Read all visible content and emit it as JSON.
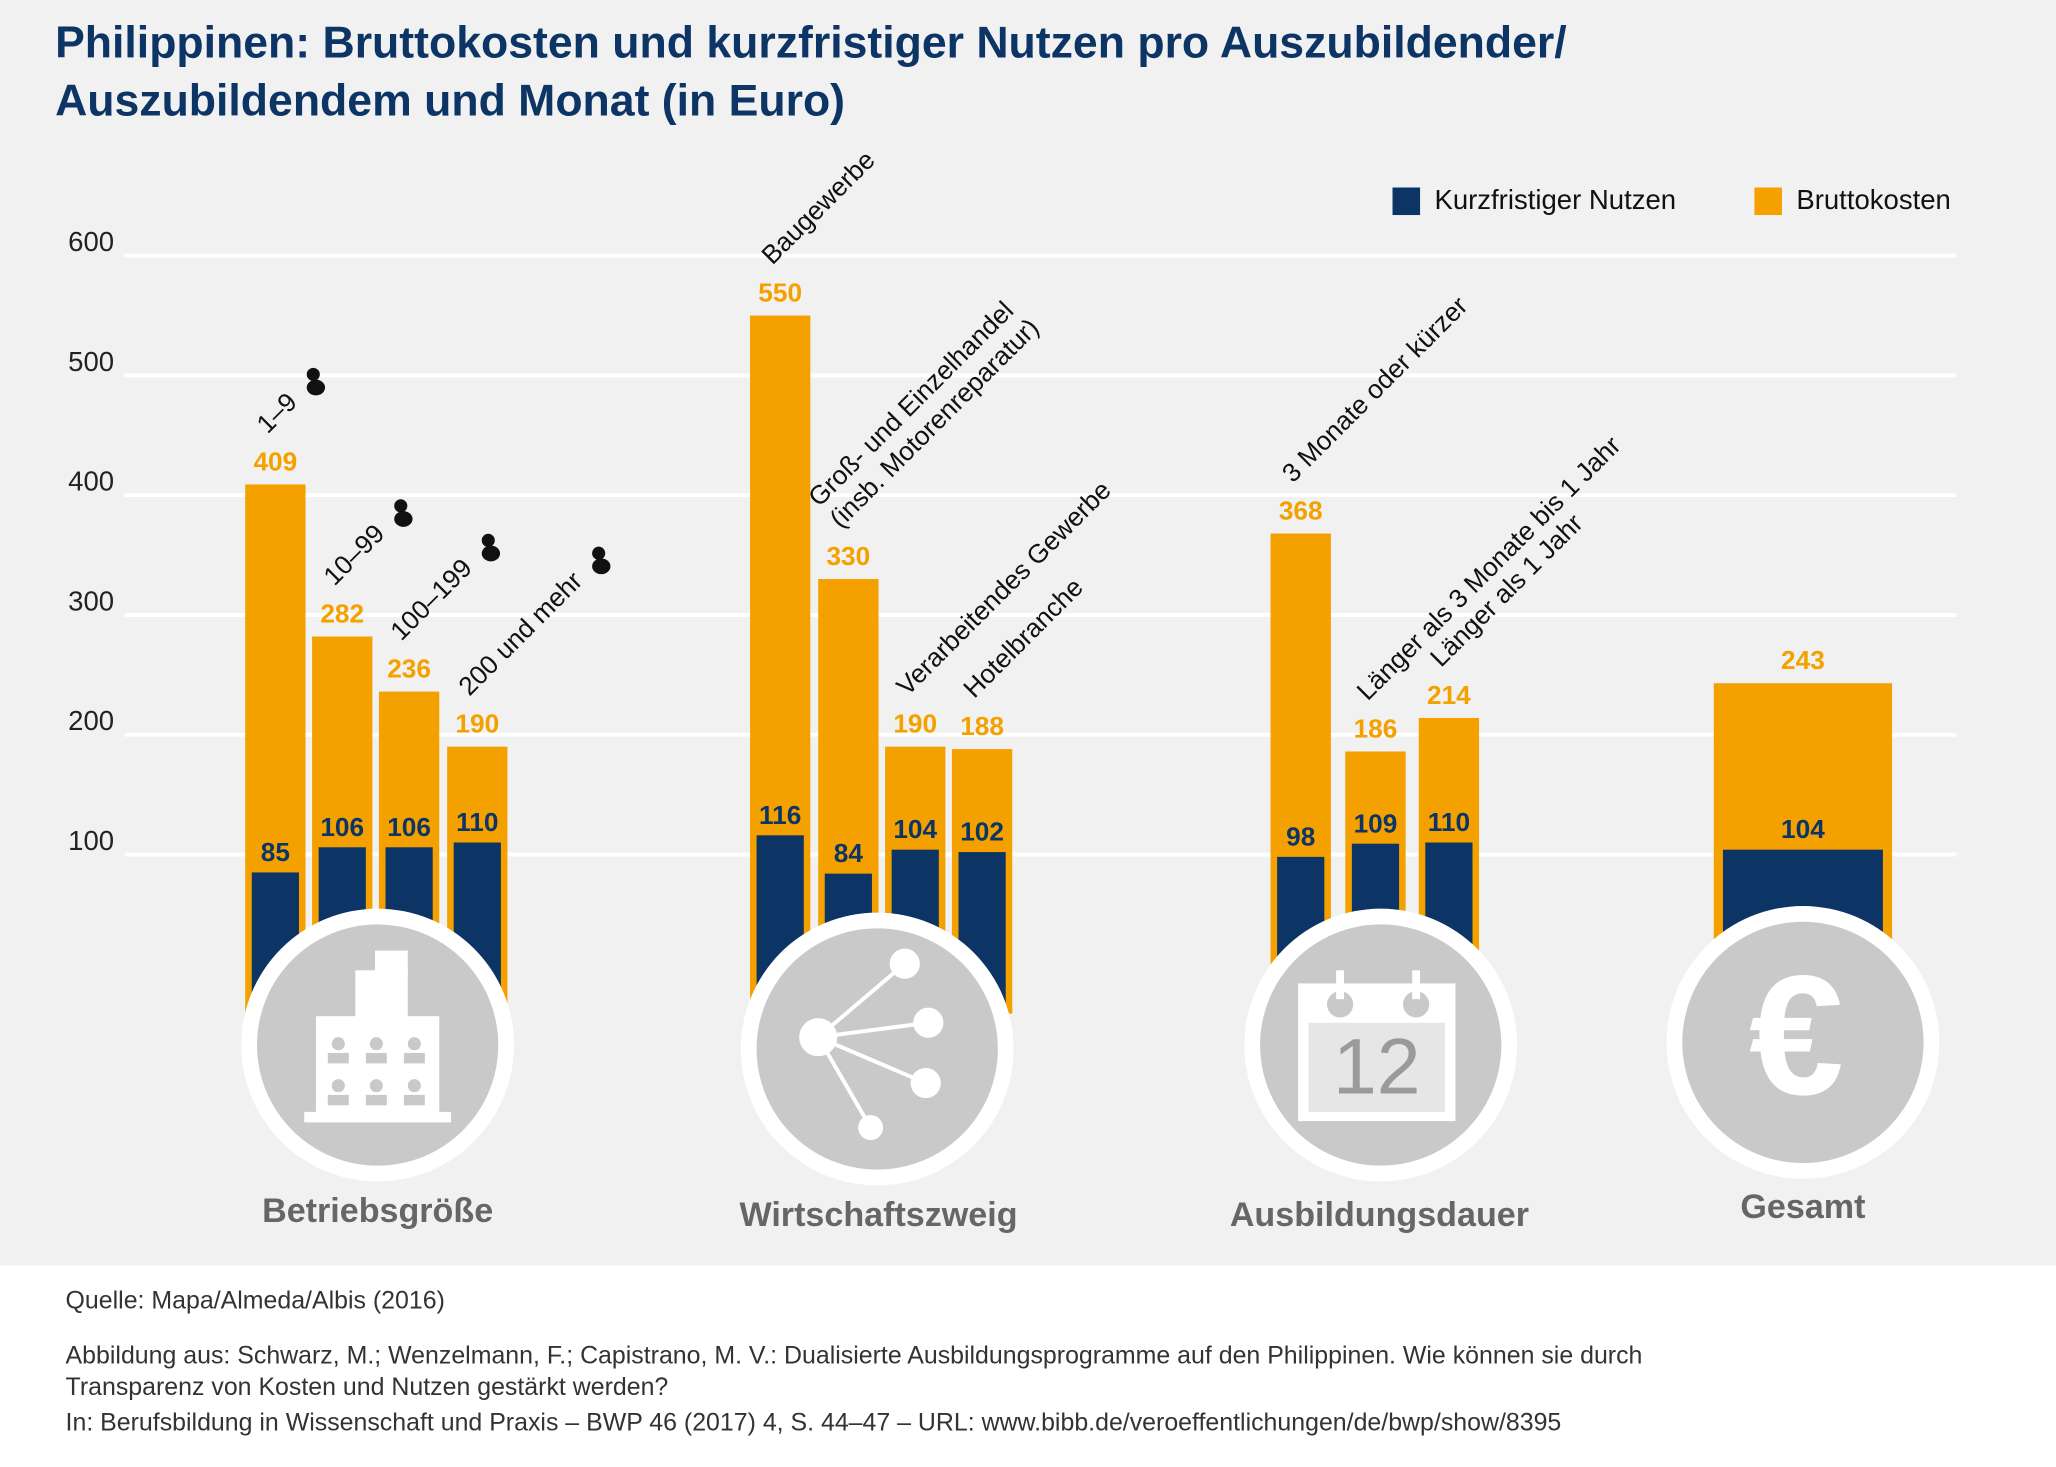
{
  "chart_data": {
    "type": "bar",
    "title_lines": [
      "Philippinen: Bruttokosten und kurzfristiger Nutzen pro Auszubildender/",
      "Auszubildendem und Monat (in Euro)"
    ],
    "categories": [
      "1–9",
      "10–99",
      "100–199",
      "200 und mehr",
      "Baugewerbe",
      "Groß- und Einzelhandel\n(insb. Motorenreparatur)",
      "Verarbeitendes Gewerbe",
      "Hotelbranche",
      "3 Monate oder kürzer",
      "Länger als 3 Monate bis 1 Jahr",
      "Länger als 1 Jahr",
      null
    ],
    "groups": [
      "Betriebsgröße",
      "Wirtschaftszweig",
      "Ausbildungsdauer",
      "Gesamt"
    ],
    "series": [
      {
        "name": "Kurzfristiger Nutzen",
        "color": "#0c3566",
        "values": [
          85,
          106,
          106,
          110,
          116,
          84,
          104,
          102,
          98,
          109,
          110,
          104
        ]
      },
      {
        "name": "Bruttokosten",
        "color": "#f4a100",
        "values": [
          409,
          282,
          236,
          190,
          550,
          330,
          190,
          188,
          368,
          186,
          214,
          243
        ]
      }
    ],
    "ylim": [
      0,
      600
    ],
    "yticks": [
      100,
      200,
      300,
      400,
      500,
      600
    ],
    "grid": true,
    "legend": "top-right",
    "calendar_icon_text": "12",
    "euro_icon_text": "€",
    "source": "Quelle: Mapa/Almeda/Albis (2016)",
    "citation_lines": [
      "Abbildung aus: Schwarz, M.; Wenzelmann, F.; Capistrano, M. V.: Dualisierte Ausbildungsprogramme auf den Philippinen. Wie können sie durch",
      "Transparenz von Kosten und Nutzen gestärkt werden?",
      "In: Berufsbildung in Wissenschaft und Praxis – BWP 46 (2017) 4, S. 44–47 – URL: www.bibb.de/veroeffentlichungen/de/bwp/show/8395"
    ]
  }
}
